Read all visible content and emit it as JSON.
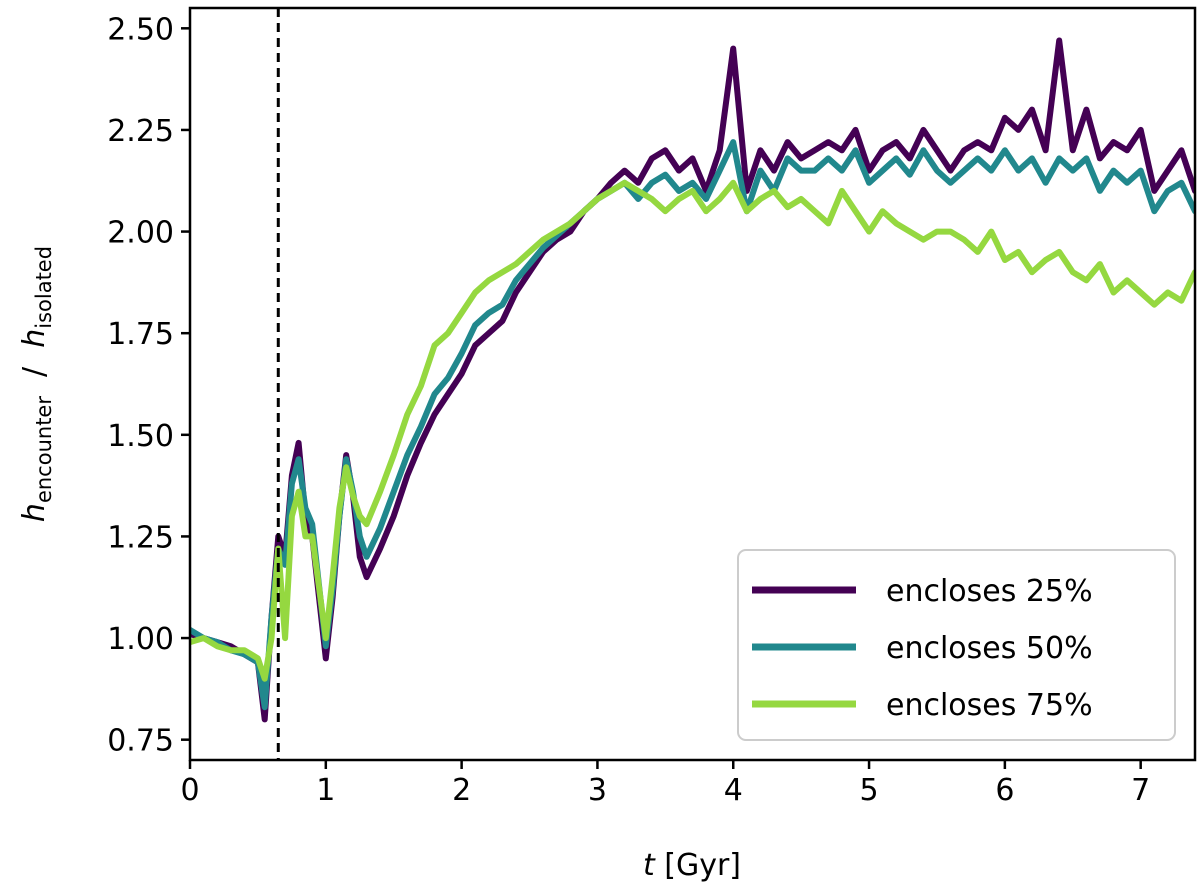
{
  "chart_data": {
    "type": "line",
    "title": "",
    "xlabel": {
      "var": "t",
      "unit": " [Gyr]"
    },
    "ylabel": {
      "num_var": "h",
      "num_sub": "encounter",
      "sep": "  /  ",
      "den_var": "h",
      "den_sub": "isolated"
    },
    "xlim": [
      0,
      7.4
    ],
    "ylim": [
      0.7,
      2.55
    ],
    "xticks": [
      0,
      1,
      2,
      3,
      4,
      5,
      6,
      7
    ],
    "xtick_labels": [
      "0",
      "1",
      "2",
      "3",
      "4",
      "5",
      "6",
      "7"
    ],
    "yticks": [
      0.75,
      1.0,
      1.25,
      1.5,
      1.75,
      2.0,
      2.25,
      2.5
    ],
    "ytick_labels": [
      "0.75",
      "1.00",
      "1.25",
      "1.50",
      "1.75",
      "2.00",
      "2.25",
      "2.50"
    ],
    "grid": false,
    "legend_position": "lower-right",
    "vline": {
      "x": 0.65,
      "style": "dashed",
      "color": "#000000"
    },
    "x": [
      0,
      0.1,
      0.2,
      0.3,
      0.4,
      0.5,
      0.55,
      0.6,
      0.65,
      0.7,
      0.75,
      0.8,
      0.85,
      0.9,
      1.0,
      1.05,
      1.1,
      1.15,
      1.2,
      1.25,
      1.3,
      1.4,
      1.5,
      1.6,
      1.7,
      1.8,
      1.9,
      2.0,
      2.1,
      2.2,
      2.3,
      2.4,
      2.5,
      2.6,
      2.7,
      2.8,
      2.9,
      3.0,
      3.1,
      3.2,
      3.3,
      3.4,
      3.5,
      3.6,
      3.7,
      3.8,
      3.9,
      4.0,
      4.1,
      4.2,
      4.3,
      4.4,
      4.5,
      4.6,
      4.7,
      4.8,
      4.9,
      5.0,
      5.1,
      5.2,
      5.3,
      5.4,
      5.5,
      5.6,
      5.7,
      5.8,
      5.9,
      6.0,
      6.1,
      6.2,
      6.3,
      6.4,
      6.5,
      6.6,
      6.7,
      6.8,
      6.9,
      7.0,
      7.1,
      7.2,
      7.3,
      7.4
    ],
    "series": [
      {
        "name": "encloses 25%",
        "color": "#440154",
        "values": [
          1.01,
          1.0,
          0.99,
          0.98,
          0.96,
          0.94,
          0.8,
          1.05,
          1.25,
          1.2,
          1.4,
          1.48,
          1.3,
          1.25,
          0.95,
          1.1,
          1.3,
          1.45,
          1.35,
          1.2,
          1.15,
          1.22,
          1.3,
          1.4,
          1.48,
          1.55,
          1.6,
          1.65,
          1.72,
          1.75,
          1.78,
          1.85,
          1.9,
          1.95,
          1.98,
          2.0,
          2.05,
          2.08,
          2.12,
          2.15,
          2.12,
          2.18,
          2.2,
          2.15,
          2.18,
          2.1,
          2.2,
          2.45,
          2.1,
          2.2,
          2.15,
          2.22,
          2.18,
          2.2,
          2.22,
          2.2,
          2.25,
          2.15,
          2.2,
          2.22,
          2.18,
          2.25,
          2.2,
          2.15,
          2.2,
          2.22,
          2.2,
          2.28,
          2.25,
          2.3,
          2.2,
          2.47,
          2.2,
          2.3,
          2.18,
          2.22,
          2.2,
          2.25,
          2.1,
          2.15,
          2.2,
          2.1
        ]
      },
      {
        "name": "encloses 50%",
        "color": "#21888d",
        "values": [
          1.02,
          1.0,
          0.99,
          0.97,
          0.96,
          0.94,
          0.83,
          1.05,
          1.22,
          1.18,
          1.38,
          1.44,
          1.32,
          1.28,
          0.98,
          1.12,
          1.3,
          1.44,
          1.36,
          1.25,
          1.2,
          1.27,
          1.36,
          1.45,
          1.52,
          1.6,
          1.64,
          1.7,
          1.77,
          1.8,
          1.82,
          1.88,
          1.92,
          1.96,
          1.99,
          2.02,
          2.05,
          2.08,
          2.1,
          2.12,
          2.08,
          2.12,
          2.14,
          2.1,
          2.12,
          2.08,
          2.15,
          2.22,
          2.05,
          2.15,
          2.1,
          2.18,
          2.15,
          2.15,
          2.18,
          2.15,
          2.2,
          2.12,
          2.15,
          2.18,
          2.14,
          2.2,
          2.15,
          2.12,
          2.15,
          2.18,
          2.15,
          2.2,
          2.15,
          2.18,
          2.12,
          2.18,
          2.15,
          2.18,
          2.1,
          2.15,
          2.12,
          2.15,
          2.05,
          2.1,
          2.12,
          2.05
        ]
      },
      {
        "name": "encloses 75%",
        "color": "#95d840",
        "values": [
          0.99,
          1.0,
          0.98,
          0.97,
          0.97,
          0.95,
          0.9,
          1.0,
          1.22,
          1.0,
          1.3,
          1.36,
          1.25,
          1.25,
          1.0,
          1.15,
          1.32,
          1.42,
          1.35,
          1.3,
          1.28,
          1.36,
          1.45,
          1.55,
          1.62,
          1.72,
          1.75,
          1.8,
          1.85,
          1.88,
          1.9,
          1.92,
          1.95,
          1.98,
          2.0,
          2.02,
          2.05,
          2.08,
          2.1,
          2.12,
          2.1,
          2.08,
          2.05,
          2.08,
          2.1,
          2.05,
          2.08,
          2.12,
          2.05,
          2.08,
          2.1,
          2.06,
          2.08,
          2.05,
          2.02,
          2.1,
          2.05,
          2.0,
          2.05,
          2.02,
          2.0,
          1.98,
          2.0,
          2.0,
          1.98,
          1.95,
          2.0,
          1.93,
          1.95,
          1.9,
          1.93,
          1.95,
          1.9,
          1.88,
          1.92,
          1.85,
          1.88,
          1.85,
          1.82,
          1.85,
          1.83,
          1.9
        ]
      }
    ]
  }
}
